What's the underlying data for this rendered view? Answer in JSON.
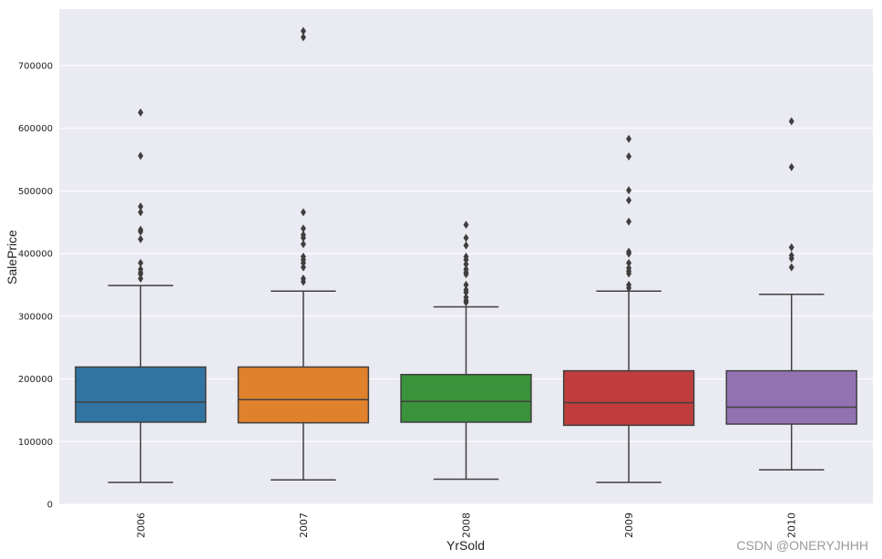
{
  "chart_data": {
    "type": "box",
    "xlabel": "YrSold",
    "ylabel": "SalePrice",
    "ylim": [
      0,
      790000
    ],
    "yticks": [
      {
        "value": 0,
        "label": "0"
      },
      {
        "value": 100000,
        "label": "100000"
      },
      {
        "value": 200000,
        "label": "200000"
      },
      {
        "value": 300000,
        "label": "300000"
      },
      {
        "value": 400000,
        "label": "400000"
      },
      {
        "value": 500000,
        "label": "500000"
      },
      {
        "value": 600000,
        "label": "600000"
      },
      {
        "value": 700000,
        "label": "700000"
      }
    ],
    "grid": true,
    "colors": {
      "background": "#eaeaf2",
      "grid": "#ffffff",
      "line": "#3f3f3f"
    },
    "categories": [
      "2006",
      "2007",
      "2008",
      "2009",
      "2010"
    ],
    "boxes": [
      {
        "category": "2006",
        "color": "#3274a1",
        "whisker_low": 35000,
        "q1": 131000,
        "median": 163000,
        "q3": 219000,
        "whisker_high": 349000,
        "outliers": [
          625000,
          556000,
          475000,
          466000,
          438000,
          435000,
          423000,
          385000,
          375000,
          370000,
          367000,
          360000
        ]
      },
      {
        "category": "2007",
        "color": "#e1812c",
        "whisker_low": 39000,
        "q1": 130000,
        "median": 167000,
        "q3": 219000,
        "whisker_high": 340000,
        "outliers": [
          755000,
          745000,
          466000,
          440000,
          430000,
          425000,
          415000,
          395000,
          390000,
          385000,
          378000,
          360000,
          355000
        ]
      },
      {
        "category": "2008",
        "color": "#3a923a",
        "whisker_low": 40000,
        "q1": 131000,
        "median": 164000,
        "q3": 207000,
        "whisker_high": 315000,
        "outliers": [
          446000,
          425000,
          413000,
          395000,
          390000,
          383000,
          375000,
          370000,
          367000,
          350000,
          342000,
          338000,
          330000,
          325000,
          322000
        ]
      },
      {
        "category": "2009",
        "color": "#c03d3e",
        "whisker_low": 35000,
        "q1": 126000,
        "median": 162000,
        "q3": 213000,
        "whisker_high": 340000,
        "outliers": [
          583000,
          555000,
          501000,
          485000,
          451000,
          403000,
          400000,
          385000,
          377000,
          372000,
          368000,
          350000,
          345000
        ]
      },
      {
        "category": "2010",
        "color": "#9372b2",
        "whisker_low": 55000,
        "q1": 128000,
        "median": 155000,
        "q3": 213000,
        "whisker_high": 335000,
        "outliers": [
          611000,
          538000,
          410000,
          397000,
          392000,
          378000
        ]
      }
    ]
  },
  "watermark": "CSDN @ONERYJHHH"
}
